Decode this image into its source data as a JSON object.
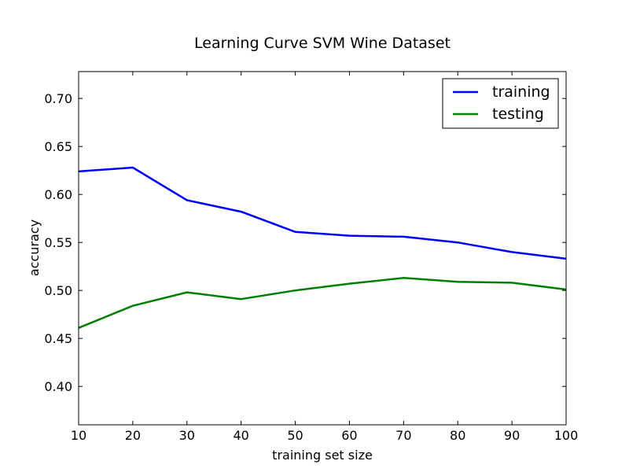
{
  "chart_data": {
    "type": "line",
    "title": "Learning Curve SVM Wine Dataset",
    "xlabel": "training set size",
    "ylabel": "accuracy",
    "x": [
      10,
      20,
      30,
      40,
      50,
      60,
      70,
      80,
      90,
      100
    ],
    "xlim": [
      10,
      100
    ],
    "ylim": [
      0.36,
      0.728
    ],
    "xticks": [
      10,
      20,
      30,
      40,
      50,
      60,
      70,
      80,
      90,
      100
    ],
    "yticks": [
      0.4,
      0.45,
      0.5,
      0.55,
      0.6,
      0.65,
      0.7
    ],
    "xtick_labels": [
      "10",
      "20",
      "30",
      "40",
      "50",
      "60",
      "70",
      "80",
      "90",
      "100"
    ],
    "ytick_labels": [
      "0.40",
      "0.45",
      "0.50",
      "0.55",
      "0.60",
      "0.65",
      "0.70"
    ],
    "series": [
      {
        "name": "training",
        "color": "#0000ff",
        "values": [
          0.624,
          0.628,
          0.594,
          0.582,
          0.561,
          0.557,
          0.556,
          0.55,
          0.54,
          0.533
        ]
      },
      {
        "name": "testing",
        "color": "#008000",
        "values": [
          0.461,
          0.484,
          0.498,
          0.491,
          0.5,
          0.507,
          0.513,
          0.509,
          0.508,
          0.501
        ]
      }
    ],
    "grid": false,
    "legend_position": "top-right"
  }
}
